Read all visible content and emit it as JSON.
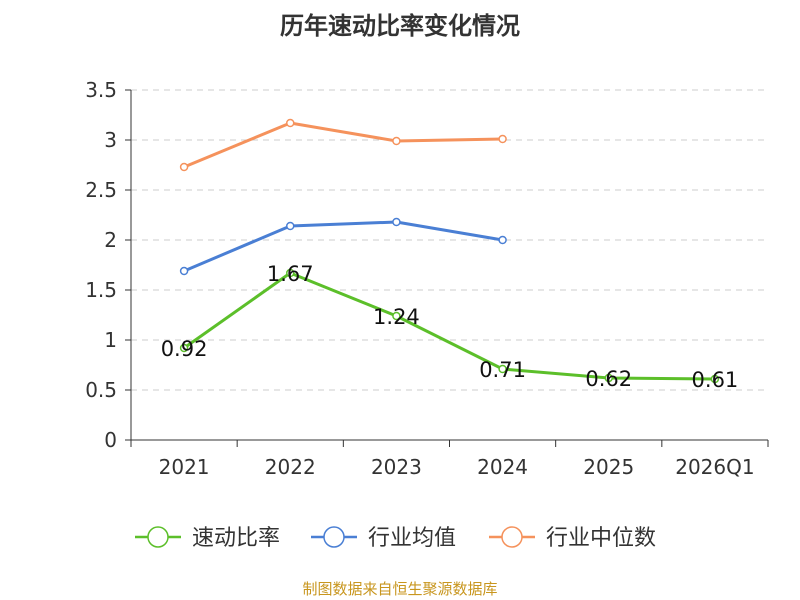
{
  "chart_data": {
    "type": "line",
    "title": "历年速动比率变化情况",
    "categories": [
      "2021",
      "2022",
      "2023",
      "2024",
      "2025",
      "2026Q1"
    ],
    "ylim": [
      0,
      3.5
    ],
    "yticks": [
      "0",
      "0.5",
      "1",
      "1.5",
      "2",
      "2.5",
      "3",
      "3.5"
    ],
    "grid": true,
    "legend_position": "bottom",
    "series": [
      {
        "name": "速动比率",
        "color": "#5cbf2a",
        "values": [
          0.92,
          1.67,
          1.24,
          0.71,
          0.62,
          0.61
        ],
        "labels": [
          "0.92",
          "1.67",
          "1.24",
          "0.71",
          "0.62",
          "0.61"
        ]
      },
      {
        "name": "行业均值",
        "color": "#4a7fd4",
        "values": [
          1.69,
          2.14,
          2.18,
          2.0,
          null,
          null
        ]
      },
      {
        "name": "行业中位数",
        "color": "#f5925c",
        "values": [
          2.73,
          3.17,
          2.99,
          3.01,
          null,
          null
        ]
      }
    ],
    "source_note": "制图数据来自恒生聚源数据库"
  }
}
